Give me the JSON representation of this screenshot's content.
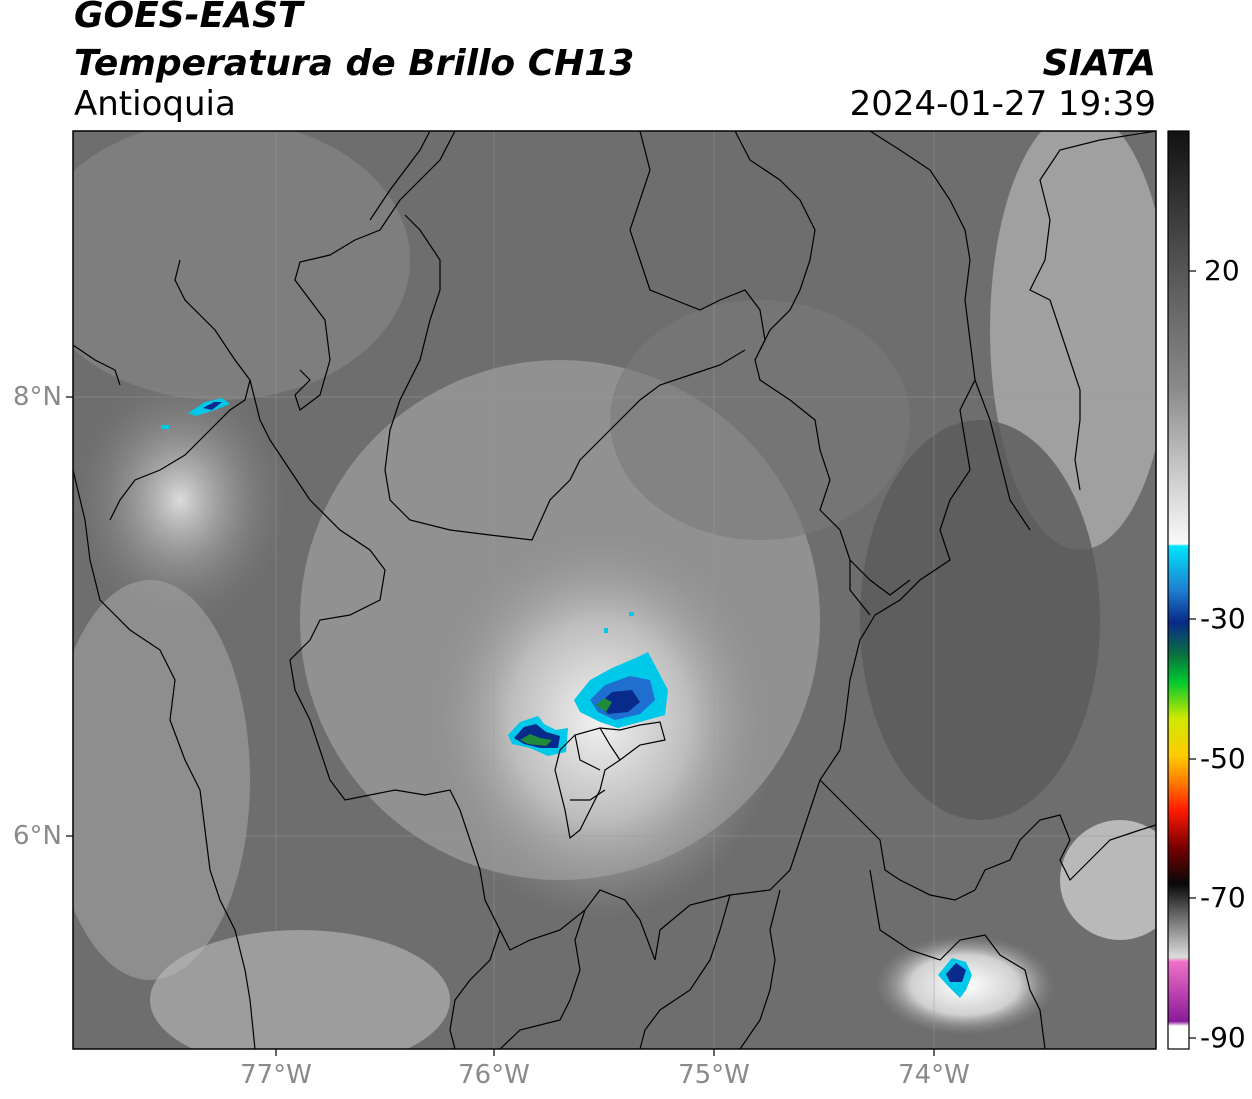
{
  "header": {
    "satellite": "GOES-EAST",
    "product": "Temperatura de Brillo CH13",
    "region": "Antioquia",
    "brand": "SIATA",
    "datetime": "2024-01-27 19:39"
  },
  "axes": {
    "latitude_labels": [
      "8°N",
      "6°N"
    ],
    "longitude_labels": [
      "77°W",
      "76°W",
      "75°W",
      "74°W"
    ]
  },
  "colorbar": {
    "tick_labels": [
      "20",
      "-30",
      "-50",
      "-70",
      "-90"
    ],
    "colors": {
      "warm_dark": "#1a1a1a",
      "mid_gray": "#808080",
      "light_gray": "#f0f0f0",
      "cyan": "#00e5ff",
      "blue": "#0a3aa0",
      "green": "#00c030",
      "yellow": "#e8e800",
      "orange": "#ff9a00",
      "red": "#e00000",
      "black": "#050505",
      "pink": "#ee66cc",
      "purple": "#8a1a9a"
    }
  },
  "map": {
    "cloud_tops_colors": {
      "deep_convection": "#0a3aa0",
      "convection_edge": "#00c8e8",
      "core": "#1f8a3a"
    }
  }
}
